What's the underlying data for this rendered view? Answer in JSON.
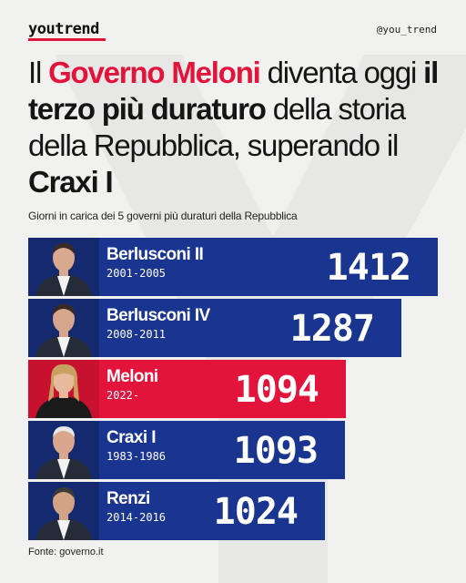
{
  "brand": "youtrend",
  "handle": "@you_trend",
  "colors": {
    "accent": "#e3143c",
    "bar_blue": "#1a3590",
    "bar_red": "#e3143c"
  },
  "headline": {
    "p1": "Il ",
    "p2": "Governo Meloni",
    "p3": " diventa oggi ",
    "p4": "il terzo più duraturo",
    "p5": " della storia della Repubblica, superando il ",
    "p6": "Craxi I"
  },
  "chart_data": {
    "type": "bar",
    "orientation": "horizontal",
    "title": "Giorni in carica dei 5 governi più duraturi della Repubblica",
    "categories": [
      "Berlusconi II",
      "Berlusconi IV",
      "Meloni",
      "Craxi I",
      "Renzi"
    ],
    "years": [
      "2001-2005",
      "2008-2011",
      "2022-",
      "1983-1986",
      "2014-2016"
    ],
    "values": [
      1412,
      1287,
      1094,
      1093,
      1024
    ],
    "highlight": "Meloni",
    "icons": [
      "portrait-icon",
      "portrait-icon",
      "portrait-icon",
      "portrait-icon",
      "portrait-icon"
    ]
  },
  "source": "Fonte: governo.it"
}
